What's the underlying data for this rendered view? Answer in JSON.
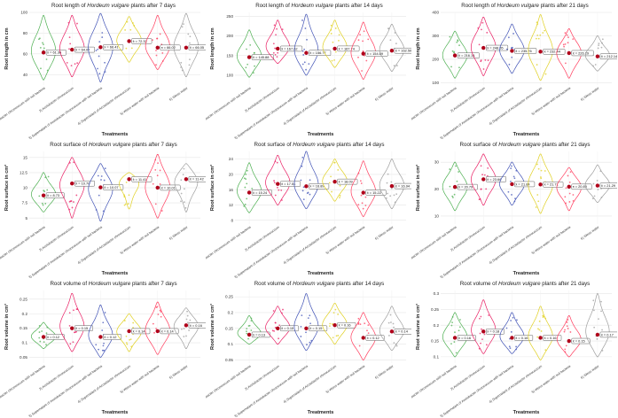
{
  "chart_data": [
    {
      "type": "violin",
      "title_prefix": "Root length of ",
      "title_species": "Hordeum vulgare",
      "title_suffix": " plants after 7 days",
      "xlabel": "Treatments",
      "ylabel": "Root length in cm",
      "ylim": [
        30,
        100
      ],
      "yticks": [
        40,
        60,
        80,
        100
      ],
      "categories": [
        "1) Azotobacter chroococcum with soil bacteria",
        "2) Azotobacter chroococcum",
        "3) Supernatant of Azotobacter chroococcum with soil bacteria",
        "4) Supernatant of Azotobacter chroococcum",
        "5) Weiss water with soil bacteria",
        "6) Weiss water"
      ],
      "means": [
        61.36,
        64.07,
        66.41,
        72.33,
        66.02,
        66.05
      ],
      "mean_labels": [
        "x̄ = 61.36",
        "x̄ = 64.07",
        "x̄ = 66.41",
        "x̄ = 72.33",
        "x̄ = 66.02",
        "x̄ = 66.05"
      ],
      "ranges": [
        [
          35,
          97
        ],
        [
          38,
          97
        ],
        [
          33,
          99
        ],
        [
          52,
          96
        ],
        [
          45,
          97
        ],
        [
          38,
          99
        ]
      ]
    },
    {
      "type": "violin",
      "title_prefix": "Root length of ",
      "title_species": "Hordeum vulgare",
      "title_suffix": " plants after 14 days",
      "xlabel": "Treatments",
      "ylabel": "Root length in cm",
      "ylim": [
        75,
        260
      ],
      "yticks": [
        100,
        150,
        200,
        250
      ],
      "categories": [
        "1) Azotobacter chroococcum with soil bacteria",
        "2) Azotobacter chroococcum",
        "3) Supernatant of Azotobacter chroococcum with soil bacteria",
        "4) Supernatant of Azotobacter chroococcum",
        "5) Weiss water with soil bacteria",
        "6) Weiss water"
      ],
      "means": [
        145.88,
        167.62,
        156.77,
        167.74,
        154.89,
        162.5
      ],
      "mean_labels": [
        "x̄ = 145.88",
        "x̄ = 167.62",
        "x̄ = 156.77",
        "x̄ = 167.74",
        "x̄ = 154.89",
        "x̄ = 162.50"
      ],
      "ranges": [
        [
          95,
          215
        ],
        [
          130,
          240
        ],
        [
          100,
          255
        ],
        [
          120,
          240
        ],
        [
          90,
          235
        ],
        [
          110,
          230
        ]
      ]
    },
    {
      "type": "violin",
      "title_prefix": "Root length of ",
      "title_species": "Hordeum vulgare",
      "title_suffix": " plants after 21 days",
      "xlabel": "Treatments",
      "ylabel": "Root length in cm",
      "ylim": [
        90,
        400
      ],
      "yticks": [
        100,
        200,
        300,
        400
      ],
      "categories": [
        "1) Azotobacter chroococcum with soil bacteria",
        "2) Azotobacter chroococcum",
        "3) Supernatant of Azotobacter chroococcum with soil bacteria",
        "4) Supernatant of Azotobacter chroococcum",
        "5) Weiss water with soil bacteria",
        "6) Weiss water"
      ],
      "means": [
        216.14,
        248.55,
        235.76,
        232.44,
        226.29,
        212.14
      ],
      "mean_labels": [
        "x̄ = 216.14",
        "x̄ = 248.55",
        "x̄ = 235.76",
        "x̄ = 232.44",
        "x̄ = 226.29",
        "x̄ = 212.14"
      ],
      "ranges": [
        [
          120,
          320
        ],
        [
          130,
          380
        ],
        [
          140,
          350
        ],
        [
          110,
          390
        ],
        [
          120,
          330
        ],
        [
          150,
          300
        ]
      ]
    },
    {
      "type": "violin",
      "title_prefix": "Root surface of ",
      "title_species": "Hordeum vulgare",
      "title_suffix": " plants after 7 days",
      "xlabel": "Treatments",
      "ylabel": "Root surface in cm²",
      "ylim": [
        4,
        16
      ],
      "yticks": [
        5,
        7.5,
        10,
        12.5,
        15
      ],
      "categories": [
        "1) Azotobacter chroococcum with soil bacteria",
        "2) Azotobacter chroococcum",
        "3) Supernatant of Azotobacter chroococcum with soil bacteria",
        "4) Supernatant of Azotobacter chroococcum",
        "5) Weiss water with soil bacteria",
        "6) Weiss water"
      ],
      "means": [
        8.73,
        10.7,
        10.07,
        11.41,
        10.01,
        11.42
      ],
      "mean_labels": [
        "x̄ = 8.73",
        "x̄ = 10.70",
        "x̄ = 10.07",
        "x̄ = 11.41",
        "x̄ = 10.01",
        "x̄ = 11.42"
      ],
      "ranges": [
        [
          6,
          12.5
        ],
        [
          5,
          15
        ],
        [
          4.5,
          14
        ],
        [
          6.5,
          12.5
        ],
        [
          5,
          15.5
        ],
        [
          6,
          14
        ]
      ]
    },
    {
      "type": "violin",
      "title_prefix": "Root surface of ",
      "title_species": "Hordeum vulgare",
      "title_suffix": " plants after 14 days",
      "xlabel": "Treatments",
      "ylabel": "Root surface in cm²",
      "ylim": [
        7,
        26
      ],
      "yticks": [
        8,
        12,
        16,
        20,
        24
      ],
      "categories": [
        "1) Azotobacter chroococcum with soil bacteria",
        "2) Azotobacter chroococcum",
        "3) Supernatant of Azotobacter chroococcum with soil bacteria",
        "4) Supernatant of Azotobacter chroococcum",
        "5) Weiss water with soil bacteria",
        "6) Weiss water"
      ],
      "means": [
        15.24,
        17.51,
        16.89,
        18.09,
        15.22,
        16.94
      ],
      "mean_labels": [
        "x̄ = 15.24",
        "x̄ = 17.51",
        "x̄ = 16.89",
        "x̄ = 18.09",
        "x̄ = 15.22",
        "x̄ = 16.94"
      ],
      "ranges": [
        [
          10,
          23
        ],
        [
          12,
          25
        ],
        [
          11,
          26
        ],
        [
          13,
          24
        ],
        [
          9,
          23.5
        ],
        [
          11,
          24
        ]
      ]
    },
    {
      "type": "violin",
      "title_prefix": "Root surface of ",
      "title_species": "Hordeum vulgare",
      "title_suffix": " plants after 21 days",
      "xlabel": "Treatments",
      "ylabel": "Root surface in cm²",
      "ylim": [
        7,
        34
      ],
      "yticks": [
        10,
        20,
        30
      ],
      "categories": [
        "1) Azotobacter chroococcum with soil bacteria",
        "2) Azotobacter chroococcum",
        "3) Supernatant of Azotobacter chroococcum with soil bacteria",
        "4) Supernatant of Azotobacter chroococcum",
        "5) Weiss water with soil bacteria",
        "6) Weiss water"
      ],
      "means": [
        20.79,
        23.66,
        21.84,
        21.71,
        20.89,
        21.29
      ],
      "mean_labels": [
        "x̄ = 20.79",
        "x̄ = 23.66",
        "x̄ = 21.84",
        "x̄ = 21.71",
        "x̄ = 20.89",
        "x̄ = 21.29"
      ],
      "ranges": [
        [
          12,
          30
        ],
        [
          14,
          33
        ],
        [
          14,
          30
        ],
        [
          11,
          33
        ],
        [
          12,
          28
        ],
        [
          15,
          29
        ]
      ]
    },
    {
      "type": "violin",
      "title_prefix": "Root volume of ",
      "title_species": "Hordeum vulgare",
      "title_suffix": " plants after 7 days",
      "xlabel": "Treatments",
      "ylabel": "Root volume in cm³",
      "ylim": [
        0.03,
        0.28
      ],
      "yticks": [
        0.05,
        0.1,
        0.15,
        0.2,
        0.25
      ],
      "categories": [
        "1) Azotobacter chroococcum with soil bacteria",
        "2) Azotobacter chroococcum",
        "3) Supernatant of Azotobacter chroococcum with soil bacteria",
        "4) Supernatant of Azotobacter chroococcum",
        "5) Weiss water with soil bacteria",
        "6) Weiss water"
      ],
      "means": [
        0.12,
        0.15,
        0.12,
        0.14,
        0.14,
        0.16
      ],
      "mean_labels": [
        "x̄ = 0.12",
        "x̄ = 0.15",
        "x̄ = 0.12",
        "x̄ = 0.14",
        "x̄ = 0.14",
        "x̄ = 0.16"
      ],
      "ranges": [
        [
          0.08,
          0.17
        ],
        [
          0.07,
          0.27
        ],
        [
          0.05,
          0.23
        ],
        [
          0.07,
          0.2
        ],
        [
          0.06,
          0.24
        ],
        [
          0.08,
          0.22
        ]
      ]
    },
    {
      "type": "violin",
      "title_prefix": "Root volume of ",
      "title_species": "Hordeum vulgare",
      "title_suffix": " plants after 14 days",
      "xlabel": "Treatments",
      "ylabel": "Root volume in cm³",
      "ylim": [
        0.04,
        0.27
      ],
      "yticks": [
        0.05,
        0.1,
        0.15,
        0.2,
        0.25
      ],
      "categories": [
        "1) Azotobacter chroococcum with soil bacteria",
        "2) Azotobacter chroococcum",
        "3) Supernatant of Azotobacter chroococcum with soil bacteria",
        "4) Supernatant of Azotobacter chroococcum",
        "5) Weiss water with soil bacteria",
        "6) Weiss water"
      ],
      "means": [
        0.13,
        0.15,
        0.15,
        0.16,
        0.12,
        0.14
      ],
      "mean_labels": [
        "x̄ = 0.13",
        "x̄ = 0.15",
        "x̄ = 0.15",
        "x̄ = 0.16",
        "x̄ = 0.12",
        "x̄ = 0.14"
      ],
      "ranges": [
        [
          0.1,
          0.19
        ],
        [
          0.1,
          0.22
        ],
        [
          0.08,
          0.26
        ],
        [
          0.1,
          0.23
        ],
        [
          0.05,
          0.2
        ],
        [
          0.08,
          0.22
        ]
      ]
    },
    {
      "type": "violin",
      "title_prefix": "Root volume of ",
      "title_species": "Hordeum vulgare",
      "title_suffix": " plants after 21 days",
      "xlabel": "Treatments",
      "ylabel": "Root volume in cm³",
      "ylim": [
        0.08,
        0.31
      ],
      "yticks": [
        0.1,
        0.15,
        0.2,
        0.25,
        0.3
      ],
      "categories": [
        "1) Azotobacter chroococcum with soil bacteria",
        "2) Azotobacter chroococcum",
        "3) Supernatant of Azotobacter chroococcum with soil bacteria",
        "4) Supernatant of Azotobacter chroococcum",
        "5) Weiss water with soil bacteria",
        "6) Weiss water"
      ],
      "means": [
        0.16,
        0.18,
        0.16,
        0.16,
        0.15,
        0.17
      ],
      "mean_labels": [
        "x̄ = 0.16",
        "x̄ = 0.18",
        "x̄ = 0.16",
        "x̄ = 0.16",
        "x̄ = 0.15",
        "x̄ = 0.17"
      ],
      "ranges": [
        [
          0.1,
          0.24
        ],
        [
          0.11,
          0.28
        ],
        [
          0.11,
          0.24
        ],
        [
          0.09,
          0.26
        ],
        [
          0.1,
          0.23
        ],
        [
          0.1,
          0.3
        ]
      ]
    }
  ],
  "colors": {
    "group1": "#4caf50",
    "group2": "#e91e63",
    "group3": "#3f51b5",
    "group4": "#e0d020",
    "group5": "#ff3b5c",
    "group6": "#9e9e9e",
    "mean_dot": "#b0001a",
    "grid": "#e6e6e6"
  }
}
